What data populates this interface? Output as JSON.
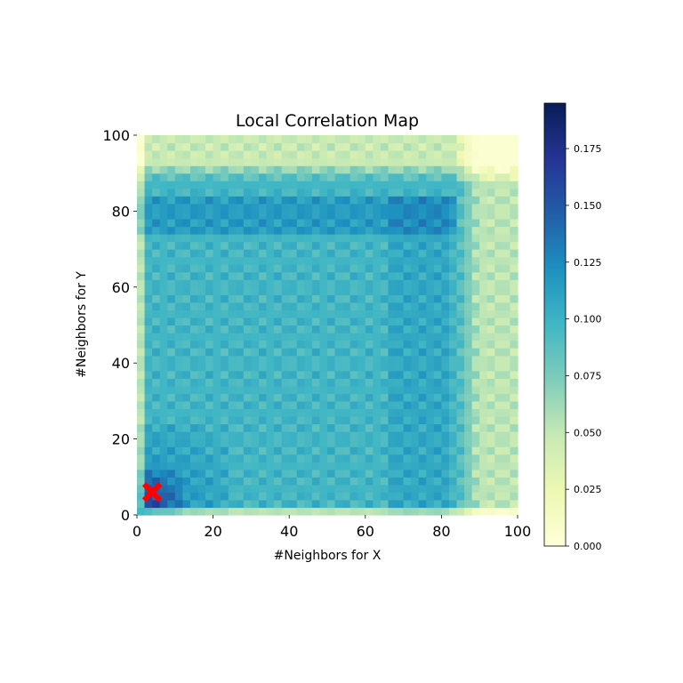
{
  "chart_data": {
    "type": "heatmap",
    "title": "Local Correlation Map",
    "xlabel": "#Neighbors for X",
    "ylabel": "#Neighbors for Y",
    "xlim": [
      0,
      100
    ],
    "ylim": [
      0,
      100
    ],
    "xticks": [
      0,
      20,
      40,
      60,
      80,
      100
    ],
    "yticks": [
      0,
      20,
      40,
      60,
      80,
      100
    ],
    "x_tick_labels": [
      "0",
      "20",
      "40",
      "60",
      "80",
      "100"
    ],
    "y_tick_labels": [
      "0",
      "20",
      "40",
      "60",
      "80",
      "100"
    ],
    "grid": false,
    "colormap": "YlGnBu",
    "colormap_stops": [
      "#ffffd9",
      "#edf8b1",
      "#c7e9b4",
      "#7fcdbb",
      "#41b6c4",
      "#1d91c0",
      "#225ea8",
      "#253494",
      "#081d58"
    ],
    "colorbar": {
      "position": "right",
      "min": 0.0,
      "max": 0.195,
      "ticks": [
        0.0,
        0.025,
        0.05,
        0.075,
        0.1,
        0.125,
        0.15,
        0.175
      ],
      "tick_labels": [
        "0.000",
        "0.025",
        "0.050",
        "0.075",
        "0.100",
        "0.125",
        "0.150",
        "0.175"
      ]
    },
    "grid_resolution": [
      50,
      50
    ],
    "value_range": [
      0.0,
      0.195
    ],
    "marker": {
      "shape": "x",
      "color": "#ff0000",
      "x": 4,
      "y": 6
    }
  }
}
